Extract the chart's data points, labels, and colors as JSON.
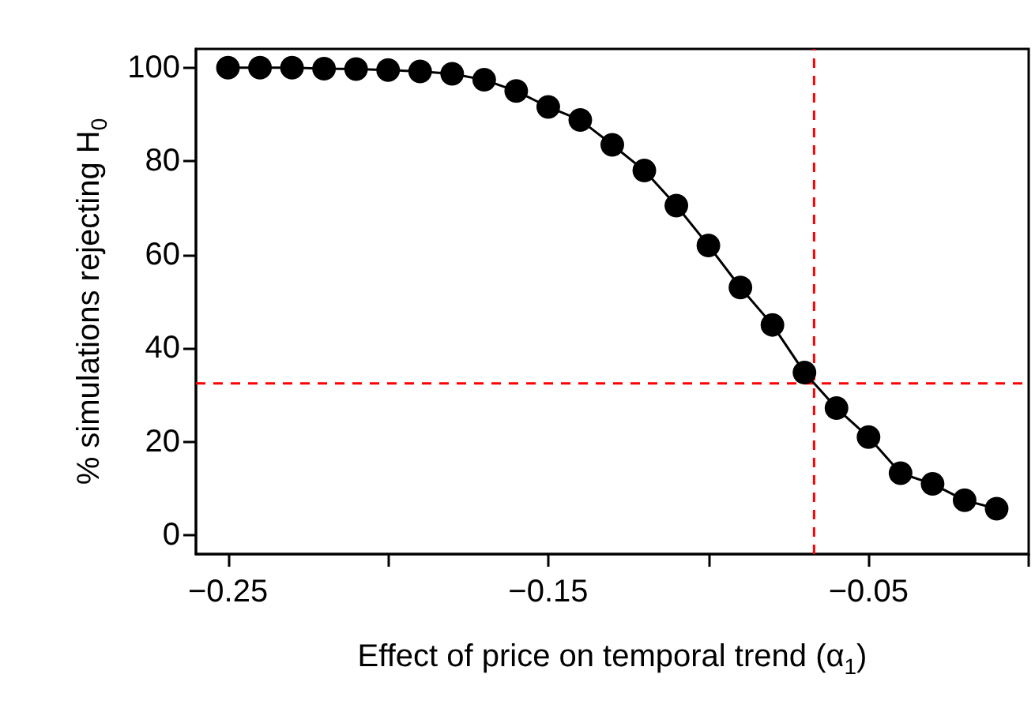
{
  "chart_data": {
    "type": "line",
    "xlabel": "Effect of price on temporal trend (α$_{1}$)",
    "ylabel": "% simulations rejecting H$_{0}$",
    "x": [
      -0.25,
      -0.24,
      -0.23,
      -0.22,
      -0.21,
      -0.2,
      -0.19,
      -0.18,
      -0.17,
      -0.16,
      -0.15,
      -0.14,
      -0.13,
      -0.12,
      -0.11,
      -0.1,
      -0.09,
      -0.08,
      -0.07,
      -0.06,
      -0.05,
      -0.04,
      -0.03,
      -0.02,
      -0.01
    ],
    "series": [
      {
        "color": "#000000",
        "values": [
          100,
          100,
          100,
          99.8,
          99.7,
          99.5,
          99.2,
          98.7,
          97.4,
          95,
          91.6,
          88.8,
          83.5,
          78,
          70.5,
          62,
          53,
          45,
          34.8,
          27.2,
          21,
          13.3,
          11,
          7.5,
          5.7
        ]
      }
    ],
    "xlim": [
      -0.26,
      0
    ],
    "xticks": [
      {
        "value": -0.25,
        "label": "−0.25"
      },
      {
        "value": -0.2,
        "label": null
      },
      {
        "value": -0.15,
        "label": "−0.15"
      },
      {
        "value": -0.1,
        "label": null
      },
      {
        "value": -0.05,
        "label": "−0.05"
      },
      {
        "value": 0,
        "label": null
      }
    ],
    "ylim": [
      -4,
      104
    ],
    "yticks": [
      0,
      20,
      40,
      60,
      80,
      100
    ],
    "ref_lines": [
      {
        "axis": "x",
        "value": -0.067,
        "color": "#ff0000",
        "line_style": "dashed"
      },
      {
        "axis": "y",
        "value": 32.5,
        "color": "#ff0000",
        "line_style": "dashed"
      }
    ],
    "grid": false,
    "marker": "circle",
    "line_style": "solid"
  }
}
